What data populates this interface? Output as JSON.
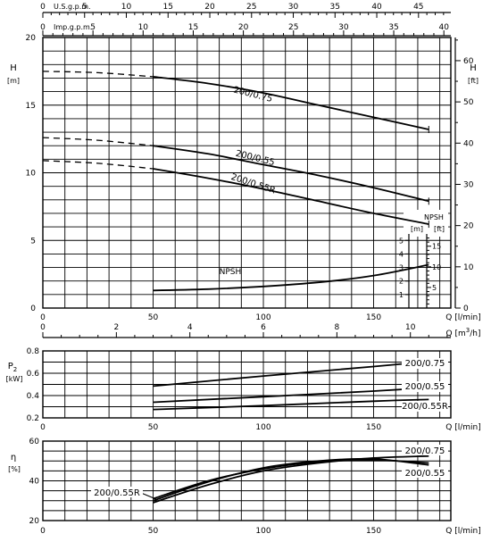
{
  "chart_data": [
    {
      "type": "line",
      "panel": "head",
      "flow_unit": "l/min",
      "top_axis_usgpm": {
        "label": "U.S.g.p.m.",
        "ticks": [
          0,
          5,
          10,
          15,
          20,
          25,
          30,
          35,
          40,
          45,
          50
        ]
      },
      "top_axis_impgpm": {
        "label": "Imp.g.p.m.",
        "ticks": [
          0,
          5,
          10,
          15,
          20,
          25,
          30,
          35,
          40
        ]
      },
      "left_axis": {
        "label": "H",
        "unit": "[m]",
        "ticks": [
          0,
          5,
          10,
          15,
          20
        ],
        "ylim": [
          0,
          20
        ]
      },
      "right_axis": {
        "label": "H",
        "unit": "[ft]",
        "ticks": [
          0,
          10,
          20,
          30,
          40,
          50,
          60
        ]
      },
      "x_axis": {
        "label": "Q [l/min]",
        "ticks": [
          0,
          50,
          100,
          150
        ],
        "xlim": [
          0,
          185
        ]
      },
      "bottom_axis_m3h": {
        "label": "Q [m3/h]",
        "ticks": [
          0,
          2,
          4,
          6,
          8,
          10
        ]
      },
      "grid": true,
      "series": [
        {
          "name": "200/0.75",
          "x": [
            0,
            25,
            50,
            75,
            100,
            125,
            150,
            175
          ],
          "y": [
            17.5,
            17.4,
            17.1,
            16.6,
            15.9,
            15.0,
            14.1,
            13.2
          ],
          "dashed_until": 50
        },
        {
          "name": "200/0.55",
          "x": [
            0,
            25,
            50,
            75,
            100,
            125,
            150,
            175
          ],
          "y": [
            12.6,
            12.4,
            12.0,
            11.4,
            10.6,
            9.8,
            8.9,
            7.9
          ],
          "dashed_until": 50
        },
        {
          "name": "200/0.55R",
          "x": [
            0,
            25,
            50,
            75,
            100,
            125,
            150,
            175
          ],
          "y": [
            10.9,
            10.7,
            10.3,
            9.6,
            8.8,
            7.9,
            7.0,
            6.2
          ],
          "dashed_until": 50
        },
        {
          "name": "NPSH",
          "x": [
            50,
            75,
            100,
            125,
            150,
            175
          ],
          "y": [
            1.3,
            1.4,
            1.6,
            1.9,
            2.4,
            3.2
          ]
        }
      ],
      "npsh_inset": {
        "title": "NPSH",
        "unit_m": "[m]",
        "unit_ft": "[ft]",
        "ticks_m": [
          1,
          2,
          3,
          4,
          5
        ],
        "ticks_ft": [
          5,
          10,
          15
        ]
      }
    },
    {
      "type": "line",
      "panel": "power",
      "y_label": "P",
      "y_label_sub": "2",
      "y_unit": "[kW]",
      "x_axis": {
        "label": "Q [l/min]",
        "ticks": [
          0,
          50,
          100,
          150
        ],
        "xlim": [
          0,
          185
        ]
      },
      "ylim": [
        0.2,
        0.8
      ],
      "y_ticks": [
        "0.2",
        "0.4",
        "0.6",
        "0.8"
      ],
      "grid": true,
      "series": [
        {
          "name": "200/0.75",
          "x": [
            50,
            100,
            150,
            175
          ],
          "y": [
            0.485,
            0.575,
            0.66,
            0.705
          ]
        },
        {
          "name": "200/0.55",
          "x": [
            50,
            100,
            150,
            175
          ],
          "y": [
            0.34,
            0.39,
            0.44,
            0.47
          ]
        },
        {
          "name": "200/0.55R",
          "x": [
            50,
            100,
            150,
            175
          ],
          "y": [
            0.275,
            0.31,
            0.35,
            0.365
          ]
        }
      ]
    },
    {
      "type": "line",
      "panel": "efficiency",
      "y_label": "η",
      "y_unit": "[%]",
      "x_axis": {
        "label": "Q [l/min]",
        "ticks": [
          0,
          50,
          100,
          150
        ],
        "xlim": [
          0,
          185
        ]
      },
      "ylim": [
        20,
        60
      ],
      "y_ticks": [
        20,
        40,
        60
      ],
      "grid": true,
      "series": [
        {
          "name": "200/0.75",
          "x": [
            50,
            75,
            100,
            125,
            150,
            175
          ],
          "y": [
            29,
            38,
            45,
            49,
            51.5,
            52.5
          ]
        },
        {
          "name": "200/0.55",
          "x": [
            50,
            75,
            100,
            125,
            150,
            175
          ],
          "y": [
            30,
            39.5,
            46.5,
            50,
            51,
            48
          ]
        },
        {
          "name": "200/0.55R",
          "x": [
            50,
            75,
            100,
            125,
            150,
            175
          ],
          "y": [
            31,
            40,
            46,
            49.5,
            50.5,
            49
          ]
        }
      ]
    }
  ]
}
